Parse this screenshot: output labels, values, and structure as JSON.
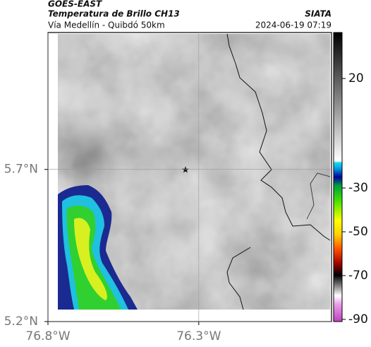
{
  "header": {
    "satellite": "GOES-EAST",
    "product": "Temperatura de Brillo CH13",
    "region": "Vía Medellín - Quibdó 50km",
    "source": "SIATA",
    "datetime": "2024-06-19 07:19"
  },
  "map": {
    "xlim": [
      -76.8,
      -75.86
    ],
    "ylim": [
      5.2,
      6.15
    ],
    "xticks": [
      {
        "value": -76.8,
        "label": "76.8°W"
      },
      {
        "value": -76.3,
        "label": "76.3°W"
      }
    ],
    "yticks": [
      {
        "value": 5.2,
        "label": "5.2°N"
      },
      {
        "value": 5.7,
        "label": "5.7°N"
      }
    ]
  },
  "colorbar": {
    "range": [
      -91,
      41
    ],
    "ticks": [
      20,
      -30,
      -50,
      -70,
      -90
    ]
  }
}
